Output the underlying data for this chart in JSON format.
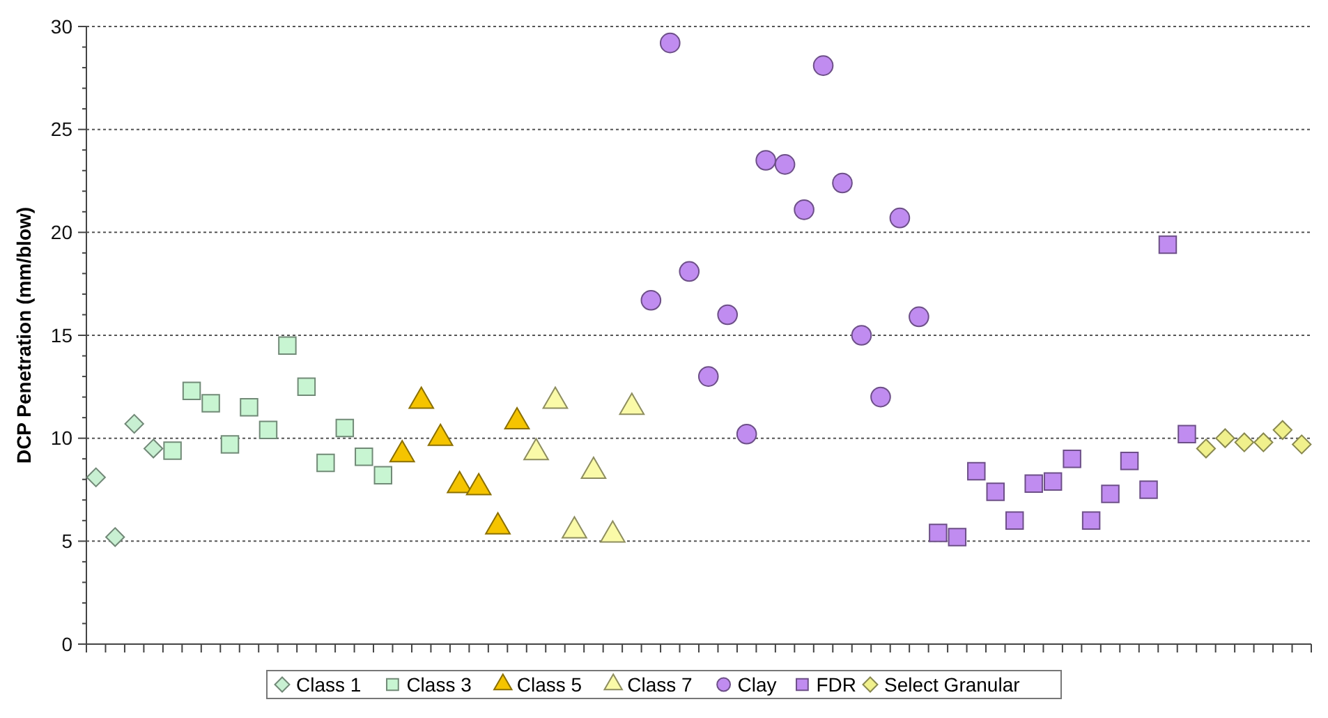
{
  "chart_data": {
    "type": "scatter",
    "ylabel": "DCP Penetration (mm/blow)",
    "categories": [
      null,
      null,
      null,
      null,
      null,
      null,
      null,
      null,
      null,
      null,
      null,
      null,
      null,
      null,
      null,
      null,
      null,
      null,
      null,
      null,
      null,
      null,
      null,
      null,
      null,
      null,
      null,
      null,
      null,
      null,
      null,
      null,
      null,
      null,
      null,
      null,
      null,
      null,
      null,
      null,
      null,
      null,
      null,
      null,
      null,
      null,
      null,
      null,
      null,
      null,
      null,
      null,
      null,
      null,
      null,
      null,
      null,
      null,
      null,
      null,
      null,
      null,
      null,
      null
    ],
    "ylim": [
      0,
      30
    ],
    "yticks": [
      0,
      {
        "value": 1,
        "label": null
      },
      {
        "value": 2,
        "label": null
      },
      {
        "value": 3,
        "label": null
      },
      {
        "value": 4,
        "label": null
      },
      5,
      {
        "value": 6,
        "label": null
      },
      {
        "value": 7,
        "label": null
      },
      {
        "value": 8,
        "label": null
      },
      {
        "value": 9,
        "label": null
      },
      10,
      {
        "value": 11,
        "label": null
      },
      {
        "value": 12,
        "label": null
      },
      {
        "value": 13,
        "label": null
      },
      {
        "value": 14,
        "label": null
      },
      15,
      {
        "value": 16,
        "label": null
      },
      {
        "value": 17,
        "label": null
      },
      {
        "value": 18,
        "label": null
      },
      {
        "value": 19,
        "label": null
      },
      20,
      {
        "value": 21,
        "label": null
      },
      {
        "value": 22,
        "label": null
      },
      {
        "value": 23,
        "label": null
      },
      {
        "value": 24,
        "label": null
      },
      25,
      {
        "value": 26,
        "label": null
      },
      {
        "value": 27,
        "label": null
      },
      {
        "value": 28,
        "label": null
      },
      {
        "value": 29,
        "label": null
      },
      30
    ],
    "grid": "y",
    "legend": "bottom",
    "series": [
      {
        "name": "Class 1",
        "color": "#c8f0d2",
        "marker": "diamond",
        "values": [
          8.1,
          5.2,
          10.7,
          9.5,
          null,
          null,
          null,
          null,
          null,
          null,
          null,
          null,
          null,
          null,
          null,
          null,
          null,
          null,
          null,
          null,
          null,
          null,
          null,
          null,
          null,
          null,
          null,
          null,
          null,
          null,
          null,
          null,
          null,
          null,
          null,
          null,
          null,
          null,
          null,
          null,
          null,
          null,
          null,
          null,
          null,
          null,
          null,
          null,
          null,
          null,
          null,
          null,
          null,
          null,
          null,
          null,
          null,
          null,
          null,
          null,
          null,
          null,
          null,
          null
        ]
      },
      {
        "name": "Class 3",
        "color": "#c8f5d2",
        "marker": "square",
        "values": [
          null,
          null,
          null,
          null,
          9.4,
          12.3,
          11.7,
          9.7,
          11.5,
          10.4,
          14.5,
          12.5,
          8.8,
          10.5,
          9.1,
          8.2,
          null,
          null,
          null,
          null,
          null,
          null,
          null,
          null,
          null,
          null,
          null,
          null,
          null,
          null,
          null,
          null,
          null,
          null,
          null,
          null,
          null,
          null,
          null,
          null,
          null,
          null,
          null,
          null,
          null,
          null,
          null,
          null,
          null,
          null,
          null,
          null,
          null,
          null,
          null,
          null,
          null,
          null,
          null,
          null,
          null,
          null,
          null,
          null
        ]
      },
      {
        "name": "Class 5",
        "color": "#f5c400",
        "marker": "triangle",
        "values": [
          null,
          null,
          null,
          null,
          null,
          null,
          null,
          null,
          null,
          null,
          null,
          null,
          null,
          null,
          null,
          null,
          9.2,
          11.8,
          10.0,
          7.7,
          7.6,
          5.7,
          10.8,
          null,
          null,
          null,
          null,
          null,
          null,
          null,
          null,
          null,
          null,
          null,
          null,
          null,
          null,
          null,
          null,
          null,
          null,
          null,
          null,
          null,
          null,
          null,
          null,
          null,
          null,
          null,
          null,
          null,
          null,
          null,
          null,
          null,
          null,
          null,
          null,
          null,
          null,
          null,
          null,
          null
        ]
      },
      {
        "name": "Class 7",
        "color": "#fafaa8",
        "marker": "triangle",
        "values": [
          null,
          null,
          null,
          null,
          null,
          null,
          null,
          null,
          null,
          null,
          null,
          null,
          null,
          null,
          null,
          null,
          null,
          null,
          null,
          null,
          null,
          null,
          null,
          9.3,
          11.8,
          5.5,
          8.4,
          5.3,
          11.5,
          null,
          null,
          null,
          null,
          null,
          null,
          null,
          null,
          null,
          null,
          null,
          null,
          null,
          null,
          null,
          null,
          null,
          null,
          null,
          null,
          null,
          null,
          null,
          null,
          null,
          null,
          null,
          null,
          null,
          null,
          null,
          null,
          null,
          null,
          null
        ]
      },
      {
        "name": "Clay",
        "color": "#c08cf0",
        "marker": "circle",
        "values": [
          null,
          null,
          null,
          null,
          null,
          null,
          null,
          null,
          null,
          null,
          null,
          null,
          null,
          null,
          null,
          null,
          null,
          null,
          null,
          null,
          null,
          null,
          null,
          null,
          null,
          null,
          null,
          null,
          null,
          16.7,
          29.2,
          18.1,
          13.0,
          16.0,
          10.2,
          23.5,
          23.3,
          21.1,
          28.1,
          22.4,
          15.0,
          12.0,
          20.7,
          15.9,
          null,
          null,
          null,
          null,
          null,
          null,
          null,
          null,
          null,
          null,
          null,
          null,
          null,
          null,
          null,
          null,
          null,
          null,
          null,
          null
        ]
      },
      {
        "name": "FDR",
        "color": "#c08cf0",
        "marker": "square",
        "values": [
          null,
          null,
          null,
          null,
          null,
          null,
          null,
          null,
          null,
          null,
          null,
          null,
          null,
          null,
          null,
          null,
          null,
          null,
          null,
          null,
          null,
          null,
          null,
          null,
          null,
          null,
          null,
          null,
          null,
          null,
          null,
          null,
          null,
          null,
          null,
          null,
          null,
          null,
          null,
          null,
          null,
          null,
          null,
          null,
          5.4,
          5.2,
          8.4,
          7.4,
          6.0,
          7.8,
          7.9,
          9.0,
          6.0,
          7.3,
          8.9,
          7.5,
          19.4,
          10.2,
          null,
          null,
          null,
          null,
          null,
          null
        ]
      },
      {
        "name": "Select Granular",
        "color": "#f0f08c",
        "marker": "diamond",
        "values": [
          null,
          null,
          null,
          null,
          null,
          null,
          null,
          null,
          null,
          null,
          null,
          null,
          null,
          null,
          null,
          null,
          null,
          null,
          null,
          null,
          null,
          null,
          null,
          null,
          null,
          null,
          null,
          null,
          null,
          null,
          null,
          null,
          null,
          null,
          null,
          null,
          null,
          null,
          null,
          null,
          null,
          null,
          null,
          null,
          null,
          null,
          null,
          null,
          null,
          null,
          null,
          null,
          null,
          null,
          null,
          null,
          null,
          null,
          9.5,
          10.0,
          9.8,
          9.8,
          10.4,
          9.7
        ]
      }
    ]
  }
}
